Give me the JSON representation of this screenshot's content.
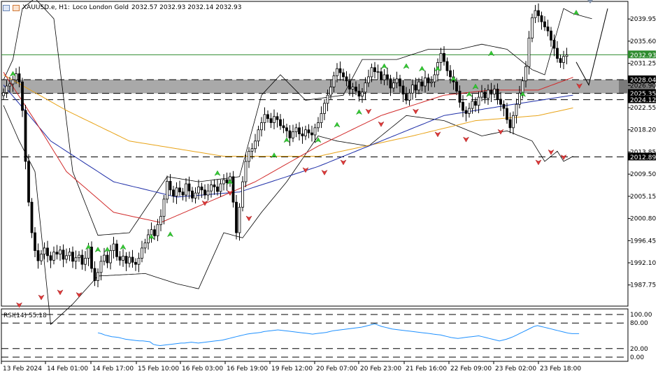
{
  "header": {
    "symbol": "XAUUSD.e, H1:",
    "instrument": "Loco London Gold",
    "ohlc": "2032.57 2032.93 2032.14 2032.93"
  },
  "rsi": {
    "label": "RSI(14) 55.18",
    "levels": [
      100,
      80,
      20,
      0
    ],
    "tick_labels": [
      "100.00",
      "80.00",
      "20.00",
      "0.00"
    ],
    "current": 55.18,
    "values": [
      57,
      55,
      52,
      50,
      48,
      47,
      46,
      44,
      42,
      41,
      40,
      39,
      38,
      38,
      37,
      36,
      30,
      28,
      27,
      28,
      29,
      30,
      31,
      32,
      33,
      33,
      34,
      35,
      34,
      33,
      34,
      35,
      36,
      37,
      38,
      39,
      40,
      42,
      44,
      46,
      48,
      50,
      52,
      54,
      55,
      56,
      57,
      58,
      60,
      61,
      62,
      63,
      64,
      63,
      62,
      61,
      60,
      59,
      58,
      57,
      56,
      55,
      54,
      55,
      56,
      57,
      58,
      60,
      62,
      63,
      64,
      65,
      66,
      67,
      68,
      69,
      70,
      72,
      74,
      76,
      78,
      75,
      72,
      70,
      68,
      66,
      65,
      64,
      63,
      62,
      61,
      60,
      59,
      58,
      57,
      56,
      55,
      54,
      53,
      52,
      50,
      48,
      46,
      45,
      44,
      45,
      46,
      47,
      48,
      49,
      50,
      48,
      46,
      44,
      42,
      40,
      38,
      40,
      42,
      45,
      48,
      52,
      56,
      60,
      64,
      68,
      72,
      74,
      72,
      70,
      68,
      66,
      64,
      62,
      60,
      58,
      56,
      55,
      55,
      55
    ]
  },
  "chart_data": {
    "type": "candlestick",
    "title": "",
    "y_ticks": [
      2039.95,
      2035.6,
      2031.25,
      2026.9,
      2022.55,
      2018.2,
      2013.85,
      2009.5,
      2005.15,
      2000.8,
      1996.45,
      1992.1,
      1987.75
    ],
    "y_tick_labels": [
      "2039.95",
      "2035.60",
      "2031.25",
      "2026.90",
      "2022.55",
      "2018.20",
      "2013.85",
      "2009.50",
      "2005.15",
      "2000.80",
      "1996.45",
      "1992.10",
      "1987.75"
    ],
    "ylim": [
      1983.6,
      2043.4
    ],
    "x_tick_labels": [
      "13 Feb 2024",
      "14 Feb 01:00",
      "14 Feb 17:00",
      "15 Feb 10:00",
      "16 Feb 03:00",
      "16 Feb 19:00",
      "19 Feb 12:00",
      "20 Feb 07:00",
      "20 Feb 23:00",
      "21 Feb 16:00",
      "22 Feb 09:00",
      "23 Feb 02:00",
      "23 Feb 18:00"
    ],
    "current_price": 2032.93,
    "current_price_label": "2032.93",
    "levels": [
      {
        "value": 2028.04,
        "label": "2028.04",
        "style": "dashed"
      },
      {
        "value": 2025.35,
        "label": "2025.35",
        "style": "dashed"
      },
      {
        "value": 2024.12,
        "label": "2024.12",
        "style": "dashed"
      },
      {
        "value": 2012.89,
        "label": "2012.89",
        "style": "dashed"
      }
    ],
    "zone": {
      "from": 2028.04,
      "to": 2025.35,
      "color": "#8c8c8c"
    },
    "closes": [
      2025.5,
      2026.8,
      2027.2,
      2028.0,
      2029.2,
      2027.6,
      2022.0,
      2012.0,
      2004.0,
      1998.0,
      1994.5,
      1992.5,
      1993.8,
      1995.0,
      1993.5,
      1992.6,
      1994.2,
      1993.8,
      1994.6,
      1992.8,
      1993.5,
      1994.2,
      1992.4,
      1993.1,
      1993.6,
      1991.8,
      1993.0,
      1995.2,
      1991.0,
      1988.6,
      1990.2,
      1992.4,
      1993.6,
      1992.1,
      1994.5,
      1995.8,
      1993.3,
      1992.6,
      1993.4,
      1992.0,
      1993.2,
      1992.2,
      1991.8,
      1993.0,
      1995.0,
      1996.0,
      1997.6,
      1998.6,
      1997.4,
      1999.6,
      2001.2,
      2004.6,
      2008.1,
      2006.4,
      2005.2,
      2006.8,
      2006.0,
      2005.4,
      2007.6,
      2006.2,
      2004.8,
      2005.8,
      2007.0,
      2006.4,
      2005.4,
      2006.2,
      2007.4,
      2007.0,
      2006.1,
      2007.6,
      2008.4,
      2007.8,
      2009.0,
      2004.0,
      1998.0,
      2003.0,
      2008.0,
      2012.0,
      2014.0,
      2014.5,
      2016.0,
      2018.2,
      2019.6,
      2021.2,
      2020.4,
      2019.6,
      2020.8,
      2020.2,
      2019.0,
      2018.6,
      2018.0,
      2016.6,
      2017.8,
      2018.6,
      2017.4,
      2017.0,
      2018.2,
      2017.6,
      2017.2,
      2018.6,
      2019.6,
      2021.4,
      2023.4,
      2025.0,
      2026.6,
      2028.8,
      2030.2,
      2029.4,
      2028.6,
      2027.8,
      2026.2,
      2026.6,
      2025.8,
      2024.8,
      2025.6,
      2027.4,
      2028.6,
      2030.4,
      2029.6,
      2029.6,
      2028.0,
      2029.0,
      2028.2,
      2026.4,
      2027.4,
      2028.2,
      2026.8,
      2025.2,
      2024.0,
      2025.4,
      2027.0,
      2026.0,
      2027.6,
      2026.8,
      2028.4,
      2027.4,
      2027.6,
      2029.0,
      2031.4,
      2033.2,
      2031.6,
      2029.8,
      2028.6,
      2027.6,
      2025.8,
      2023.6,
      2022.0,
      2021.4,
      2022.4,
      2023.8,
      2023.0,
      2024.6,
      2025.6,
      2024.4,
      2026.0,
      2025.2,
      2026.2,
      2024.2,
      2023.2,
      2022.4,
      2020.2,
      2018.6,
      2021.0,
      2023.2,
      2025.4,
      2027.8,
      2030.6,
      2036.2,
      2040.2,
      2041.6,
      2040.6,
      2039.4,
      2038.4,
      2037.6,
      2035.8,
      2034.2,
      2032.2,
      2031.4,
      2032.6,
      2032.9
    ],
    "ma_red_points": [
      [
        0,
        2029.5
      ],
      [
        10,
        2020
      ],
      [
        20,
        2010
      ],
      [
        35,
        2002
      ],
      [
        50,
        2000
      ],
      [
        65,
        2004
      ],
      [
        80,
        2008
      ],
      [
        100,
        2015
      ],
      [
        120,
        2021
      ],
      [
        140,
        2025
      ],
      [
        155,
        2026
      ],
      [
        170,
        2026
      ],
      [
        181,
        2028.5
      ]
    ],
    "ma_blue_points": [
      [
        0,
        2027
      ],
      [
        15,
        2016
      ],
      [
        35,
        2008
      ],
      [
        55,
        2005
      ],
      [
        75,
        2006
      ],
      [
        100,
        2011
      ],
      [
        120,
        2016
      ],
      [
        140,
        2021
      ],
      [
        160,
        2023
      ],
      [
        181,
        2025
      ]
    ],
    "ma_yellow_points": [
      [
        0,
        2029
      ],
      [
        20,
        2022
      ],
      [
        40,
        2016
      ],
      [
        70,
        2013
      ],
      [
        100,
        2013
      ],
      [
        130,
        2017
      ],
      [
        150,
        2020
      ],
      [
        170,
        2021
      ],
      [
        181,
        2022.5
      ]
    ],
    "bb_upper_points": [
      [
        0,
        2028
      ],
      [
        3,
        2032
      ],
      [
        6,
        2042
      ],
      [
        10,
        2044
      ],
      [
        16,
        2040
      ],
      [
        22,
        2010
      ],
      [
        30,
        1997.5
      ],
      [
        40,
        1998
      ],
      [
        52,
        2009
      ],
      [
        62,
        2008
      ],
      [
        75,
        2009
      ],
      [
        82,
        2025
      ],
      [
        88,
        2029
      ],
      [
        96,
        2024
      ],
      [
        108,
        2025
      ],
      [
        114,
        2032
      ],
      [
        125,
        2032
      ],
      [
        135,
        2034
      ],
      [
        145,
        2034
      ],
      [
        152,
        2035
      ],
      [
        160,
        2034
      ],
      [
        168,
        2030
      ],
      [
        172,
        2029
      ],
      [
        178,
        2042
      ],
      [
        181,
        2041
      ],
      [
        187,
        2040
      ]
    ],
    "bb_lower_points": [
      [
        0,
        2023
      ],
      [
        5,
        2016
      ],
      [
        10,
        2010
      ],
      [
        15,
        1980
      ],
      [
        22,
        1984
      ],
      [
        30,
        1989.5
      ],
      [
        45,
        1990
      ],
      [
        55,
        1988
      ],
      [
        62,
        1987
      ],
      [
        70,
        1998
      ],
      [
        76,
        1997
      ],
      [
        82,
        2002
      ],
      [
        90,
        2008
      ],
      [
        100,
        2017
      ],
      [
        106,
        2016
      ],
      [
        116,
        2015
      ],
      [
        128,
        2021
      ],
      [
        140,
        2020
      ],
      [
        152,
        2017
      ],
      [
        160,
        2018
      ],
      [
        168,
        2016
      ],
      [
        172,
        2012
      ],
      [
        176,
        2014
      ],
      [
        178,
        2012
      ],
      [
        181,
        2013
      ]
    ],
    "up_arrows": [
      [
        3,
        2029
      ],
      [
        27,
        1995
      ],
      [
        30,
        1994.5
      ],
      [
        33,
        1994.5
      ],
      [
        38,
        1995
      ],
      [
        47,
        1997
      ],
      [
        53,
        1997.5
      ],
      [
        68,
        2009.5
      ],
      [
        72,
        2007.8
      ],
      [
        86,
        2013
      ],
      [
        90,
        2016
      ],
      [
        100,
        2016
      ],
      [
        106,
        2019
      ],
      [
        113,
        2021.5
      ],
      [
        121,
        2030.5
      ],
      [
        128,
        2030.5
      ],
      [
        133,
        2030
      ],
      [
        138,
        2030
      ],
      [
        143,
        2028
      ],
      [
        148,
        2025
      ],
      [
        150,
        2026.5
      ],
      [
        155,
        2033
      ],
      [
        165,
        2025
      ],
      [
        182,
        2041
      ]
    ],
    "down_arrows": [
      [
        5,
        1984
      ],
      [
        12,
        1985.5
      ],
      [
        18,
        1986.5
      ],
      [
        24,
        1986
      ],
      [
        64,
        2004
      ],
      [
        72,
        2006
      ],
      [
        78,
        2001
      ],
      [
        96,
        2010.5
      ],
      [
        102,
        2010
      ],
      [
        108,
        2012
      ],
      [
        116,
        2022
      ],
      [
        120,
        2019.5
      ],
      [
        131,
        2022
      ],
      [
        138,
        2017.5
      ],
      [
        147,
        2016.5
      ],
      [
        158,
        2018
      ],
      [
        170,
        2012
      ],
      [
        174,
        2014
      ],
      [
        178,
        2013
      ],
      [
        183,
        2027
      ]
    ],
    "forecast_points": [
      [
        182,
        2031.5
      ],
      [
        186,
        2027
      ],
      [
        192,
        2042
      ]
    ],
    "grid": false,
    "legend": "none"
  }
}
